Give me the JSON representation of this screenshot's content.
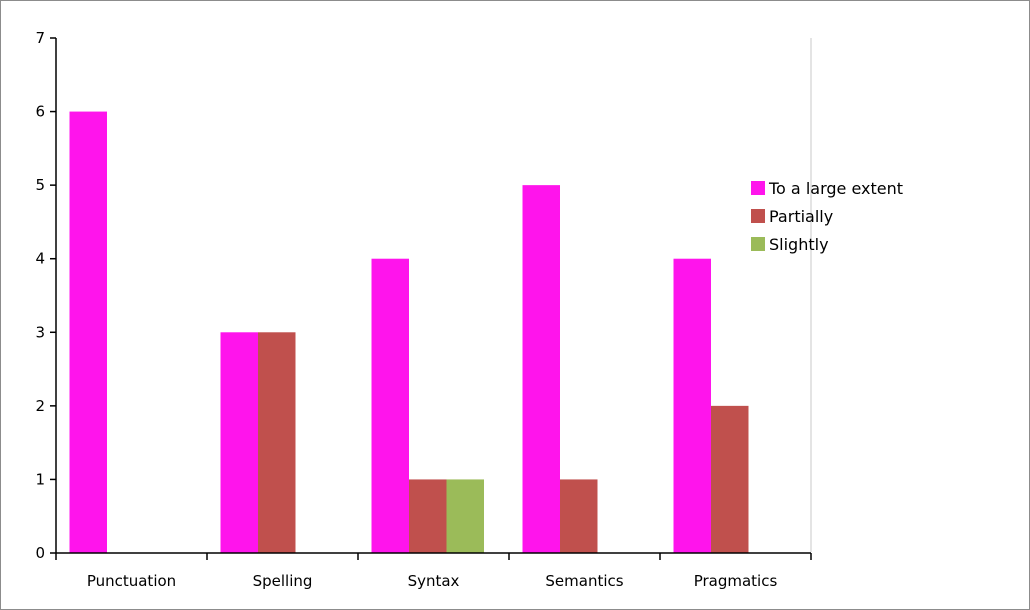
{
  "chart_data": {
    "type": "bar",
    "title": "",
    "xlabel": "",
    "ylabel": "",
    "categories": [
      "Punctuation",
      "Spelling",
      "Syntax",
      "Semantics",
      "Pragmatics"
    ],
    "series": [
      {
        "name": "To a large extent",
        "color": "#ff14ec",
        "values": [
          6,
          3,
          4,
          5,
          4
        ]
      },
      {
        "name": "Partially",
        "color": "#c0504d",
        "values": [
          0,
          3,
          1,
          1,
          2
        ]
      },
      {
        "name": "Slightly",
        "color": "#9bbb59",
        "values": [
          0,
          0,
          1,
          0,
          0
        ]
      }
    ],
    "ylim": [
      0,
      7
    ],
    "yticks": [
      "0",
      "1",
      "2",
      "3",
      "4",
      "5",
      "6",
      "7"
    ],
    "grid": false,
    "legend_position": "right"
  }
}
